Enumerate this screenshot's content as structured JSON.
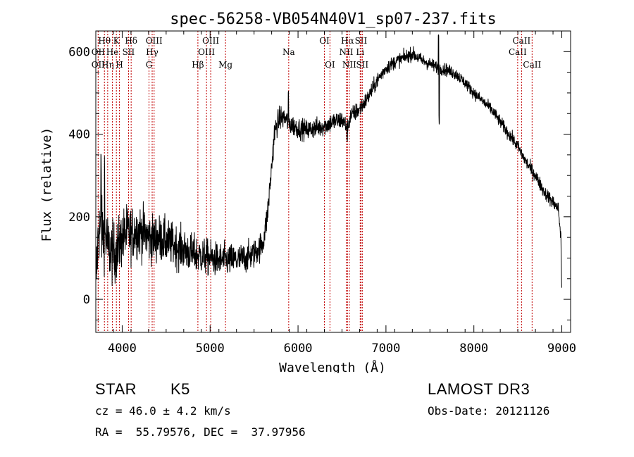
{
  "chart_data": {
    "type": "line",
    "title": "spec-56258-VB054N40V1_sp07-237.fits",
    "xlabel": "Wavelength (Å)",
    "ylabel": "Flux (relative)",
    "xlim": [
      3700,
      9100
    ],
    "ylim": [
      -80,
      650
    ],
    "xticks": [
      4000,
      5000,
      6000,
      7000,
      8000,
      9000
    ],
    "yticks": [
      0,
      200,
      400,
      600
    ],
    "series": [
      {
        "name": "spectrum",
        "anchors": [
          [
            3700,
            30
          ],
          [
            3730,
            170
          ],
          [
            3760,
            160
          ],
          [
            3800,
            160
          ],
          [
            3850,
            120
          ],
          [
            3900,
            110
          ],
          [
            3950,
            120
          ],
          [
            4000,
            150
          ],
          [
            4050,
            160
          ],
          [
            4100,
            160
          ],
          [
            4150,
            165
          ],
          [
            4200,
            165
          ],
          [
            4250,
            160
          ],
          [
            4300,
            150
          ],
          [
            4350,
            145
          ],
          [
            4400,
            150
          ],
          [
            4500,
            140
          ],
          [
            4600,
            130
          ],
          [
            4700,
            120
          ],
          [
            4800,
            110
          ],
          [
            4900,
            105
          ],
          [
            5000,
            100
          ],
          [
            5100,
            95
          ],
          [
            5200,
            95
          ],
          [
            5300,
            95
          ],
          [
            5400,
            100
          ],
          [
            5500,
            110
          ],
          [
            5600,
            135
          ],
          [
            5650,
            200
          ],
          [
            5700,
            320
          ],
          [
            5730,
            400
          ],
          [
            5760,
            425
          ],
          [
            5800,
            440
          ],
          [
            5850,
            440
          ],
          [
            5900,
            425
          ],
          [
            5950,
            420
          ],
          [
            6000,
            415
          ],
          [
            6100,
            410
          ],
          [
            6200,
            415
          ],
          [
            6300,
            420
          ],
          [
            6400,
            430
          ],
          [
            6500,
            435
          ],
          [
            6560,
            415
          ],
          [
            6600,
            445
          ],
          [
            6700,
            460
          ],
          [
            6800,
            490
          ],
          [
            6900,
            530
          ],
          [
            7000,
            560
          ],
          [
            7100,
            575
          ],
          [
            7200,
            585
          ],
          [
            7300,
            595
          ],
          [
            7400,
            580
          ],
          [
            7500,
            570
          ],
          [
            7600,
            560
          ],
          [
            7700,
            555
          ],
          [
            7800,
            545
          ],
          [
            7900,
            525
          ],
          [
            8000,
            500
          ],
          [
            8100,
            480
          ],
          [
            8200,
            460
          ],
          [
            8300,
            430
          ],
          [
            8400,
            400
          ],
          [
            8500,
            370
          ],
          [
            8600,
            330
          ],
          [
            8700,
            300
          ],
          [
            8800,
            260
          ],
          [
            8900,
            235
          ],
          [
            8960,
            220
          ],
          [
            8990,
            150
          ],
          [
            9000,
            10
          ]
        ],
        "noise": [
          [
            3700,
            110
          ],
          [
            4000,
            90
          ],
          [
            4500,
            70
          ],
          [
            5000,
            55
          ],
          [
            5500,
            45
          ],
          [
            5700,
            40
          ],
          [
            6000,
            32
          ],
          [
            6500,
            30
          ],
          [
            7000,
            22
          ],
          [
            8000,
            18
          ],
          [
            9000,
            22
          ]
        ],
        "features": [
          [
            7605,
            -120
          ],
          [
            7598,
            80
          ],
          [
            5890,
            70
          ],
          [
            6560,
            -50
          ],
          [
            3760,
            170
          ],
          [
            3800,
            150
          ]
        ]
      }
    ],
    "lines": [
      {
        "name": "OII",
        "wl": 3727,
        "row": 3
      },
      {
        "name": "OII",
        "wl": 3727,
        "row": 2
      },
      {
        "name": "Hθ",
        "wl": 3798,
        "row": 1
      },
      {
        "name": "Hη",
        "wl": 3835,
        "row": 3
      },
      {
        "name": "He",
        "wl": 3889,
        "row": 2
      },
      {
        "name": "K",
        "wl": 3934,
        "row": 1
      },
      {
        "name": "H",
        "wl": 3969,
        "row": 3
      },
      {
        "name": "SII",
        "wl": 4072,
        "row": 2
      },
      {
        "name": "Hδ",
        "wl": 4102,
        "row": 1
      },
      {
        "name": "G",
        "wl": 4305,
        "row": 3
      },
      {
        "name": "Hγ",
        "wl": 4341,
        "row": 2
      },
      {
        "name": "OIII",
        "wl": 4363,
        "row": 1
      },
      {
        "name": "Hβ",
        "wl": 4861,
        "row": 3
      },
      {
        "name": "OIII",
        "wl": 4959,
        "row": 2
      },
      {
        "name": "OIII",
        "wl": 5007,
        "row": 1
      },
      {
        "name": "Mg",
        "wl": 5175,
        "row": 3
      },
      {
        "name": "Na",
        "wl": 5894,
        "row": 2
      },
      {
        "name": "OI",
        "wl": 6300,
        "row": 1
      },
      {
        "name": "OI",
        "wl": 6363,
        "row": 3
      },
      {
        "name": "NII",
        "wl": 6548,
        "row": 2
      },
      {
        "name": "Hα",
        "wl": 6563,
        "row": 1
      },
      {
        "name": "NII",
        "wl": 6583,
        "row": 3
      },
      {
        "name": "Li",
        "wl": 6707,
        "row": 2
      },
      {
        "name": "SII",
        "wl": 6716,
        "row": 1
      },
      {
        "name": "SII",
        "wl": 6731,
        "row": 3
      },
      {
        "name": "CaII",
        "wl": 8498,
        "row": 2
      },
      {
        "name": "CaII",
        "wl": 8542,
        "row": 1
      },
      {
        "name": "CaII",
        "wl": 8662,
        "row": 3
      }
    ]
  },
  "info": {
    "object_class": "STAR",
    "subclass": "K5",
    "survey": "LAMOST DR3",
    "redshift_line": "cz = 46.0 ± 4.2 km/s",
    "obs_date_line": "Obs-Date: 20121126",
    "coords_line": "RA =  55.79576, DEC =  37.97956"
  }
}
